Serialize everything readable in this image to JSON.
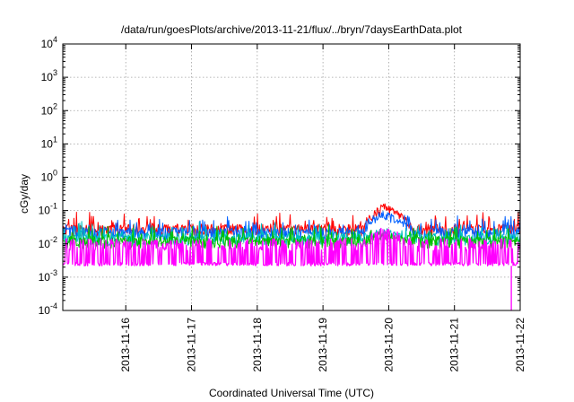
{
  "chart_data": {
    "type": "line",
    "title": "/data/run/goesPlots/archive/2013-11-21/flux/../bryn/7daysEarthData.plot",
    "xlabel": "Coordinated Universal Time (UTC)",
    "ylabel": "cGy/day",
    "yscale": "log",
    "ylim_exponents": [
      -4,
      4
    ],
    "y_tick_labels": [
      {
        "exp": -4,
        "base": "10",
        "sup": "-4"
      },
      {
        "exp": -3,
        "base": "10",
        "sup": "-3"
      },
      {
        "exp": -2,
        "base": "10",
        "sup": "-2"
      },
      {
        "exp": -1,
        "base": "10",
        "sup": "-1"
      },
      {
        "exp": 0,
        "base": "10",
        "sup": "0"
      },
      {
        "exp": 1,
        "base": "10",
        "sup": "1"
      },
      {
        "exp": 2,
        "base": "10",
        "sup": "2"
      },
      {
        "exp": 3,
        "base": "10",
        "sup": "3"
      },
      {
        "exp": 4,
        "base": "10",
        "sup": "4"
      }
    ],
    "xlim": [
      "2013-11-15T01:00",
      "2013-11-22T00:00"
    ],
    "x_tick_labels": [
      "2013-11-16",
      "2013-11-17",
      "2013-11-18",
      "2013-11-19",
      "2013-11-20",
      "2013-11-21",
      "2013-11-22"
    ],
    "grid": true,
    "legend": "none",
    "series_colors": [
      "#ff0000",
      "#ff8000",
      "#00c000",
      "#00c0c0",
      "#0060ff",
      "#ff00ff"
    ],
    "series": [
      {
        "color": "#ff0000",
        "typical": 0.028,
        "peak": 0.17
      },
      {
        "color": "#0060ff",
        "typical": 0.022,
        "peak": 0.1
      },
      {
        "color": "#00c0c0",
        "typical": 0.015,
        "peak": 0.03
      },
      {
        "color": "#00c000",
        "typical": 0.012,
        "peak": 0.025
      },
      {
        "color": "#ff00ff",
        "typical": 0.006,
        "peak": 0.014,
        "floor": 0.0022,
        "dropout": {
          "x": "2013-11-21T20:45",
          "min": 0.0001
        }
      }
    ],
    "event": {
      "start": "2013-11-19T15:00",
      "peak_time": "2013-11-19T22:00",
      "end": "2013-11-20T09:00"
    }
  }
}
